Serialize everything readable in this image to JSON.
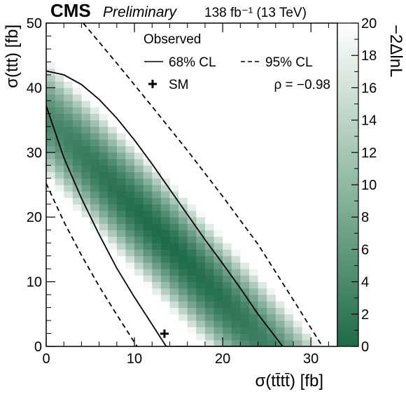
{
  "header": {
    "experiment": "CMS",
    "status": "Preliminary",
    "lumi": "138 fb⁻¹ (13 TeV)"
  },
  "chart_data": {
    "type": "heatmap",
    "title": "",
    "xlabel": "σ(tt̄tt̄) [fb]",
    "ylabel": "σ(ttt) [fb]",
    "zlabel": "−2ΔlnL",
    "xlim": [
      0,
      33
    ],
    "ylim": [
      0,
      50
    ],
    "zlim": [
      0,
      20
    ],
    "xticks": [
      0,
      10,
      20,
      30
    ],
    "yticks": [
      0,
      10,
      20,
      30,
      40,
      50
    ],
    "zticks": [
      0,
      2,
      4,
      6,
      8,
      10,
      12,
      14,
      16,
      18,
      20
    ],
    "colors": {
      "low": "#1e6b47",
      "high": "#ffffff"
    },
    "legend": {
      "title": "Observed",
      "placement": "top",
      "entries": [
        {
          "label": "68% CL",
          "style": "solid"
        },
        {
          "label": "95% CL",
          "style": "dashed"
        },
        {
          "label": "SM",
          "style": "cross-marker"
        }
      ]
    },
    "annotation": "ρ = −0.98",
    "sm_point": {
      "x": 13.4,
      "y": 1.97
    },
    "contours": [
      {
        "name": "68% CL",
        "style": "solid",
        "points": [
          [
            0,
            37.2
          ],
          [
            2,
            29.2
          ],
          [
            4,
            22.9
          ],
          [
            6,
            17.3
          ],
          [
            8,
            12.1
          ],
          [
            10,
            7.6
          ],
          [
            12,
            3.4
          ],
          [
            13.6,
            0
          ],
          [
            26.8,
            0
          ],
          [
            24,
            5
          ],
          [
            22,
            9
          ],
          [
            20,
            12.8
          ],
          [
            18,
            16.5
          ],
          [
            16,
            20.4
          ],
          [
            14,
            24.3
          ],
          [
            12,
            28.2
          ],
          [
            10,
            31.9
          ],
          [
            8,
            35.3
          ],
          [
            6,
            38.2
          ],
          [
            4,
            40.5
          ],
          [
            2,
            42
          ],
          [
            0,
            42.6
          ]
        ]
      },
      {
        "name": "95% CL lower",
        "style": "dashed",
        "points": [
          [
            0,
            25.2
          ],
          [
            2,
            19.3
          ],
          [
            4,
            14.1
          ],
          [
            6,
            9.3
          ],
          [
            8,
            4.9
          ],
          [
            10.3,
            0
          ]
        ]
      },
      {
        "name": "95% CL upper",
        "style": "dashed",
        "points": [
          [
            4.2,
            50
          ],
          [
            8,
            43.8
          ],
          [
            12,
            37.1
          ],
          [
            16,
            30.3
          ],
          [
            20,
            23.2
          ],
          [
            24,
            15.8
          ],
          [
            28,
            7.2
          ],
          [
            31.3,
            0
          ]
        ]
      }
    ]
  }
}
